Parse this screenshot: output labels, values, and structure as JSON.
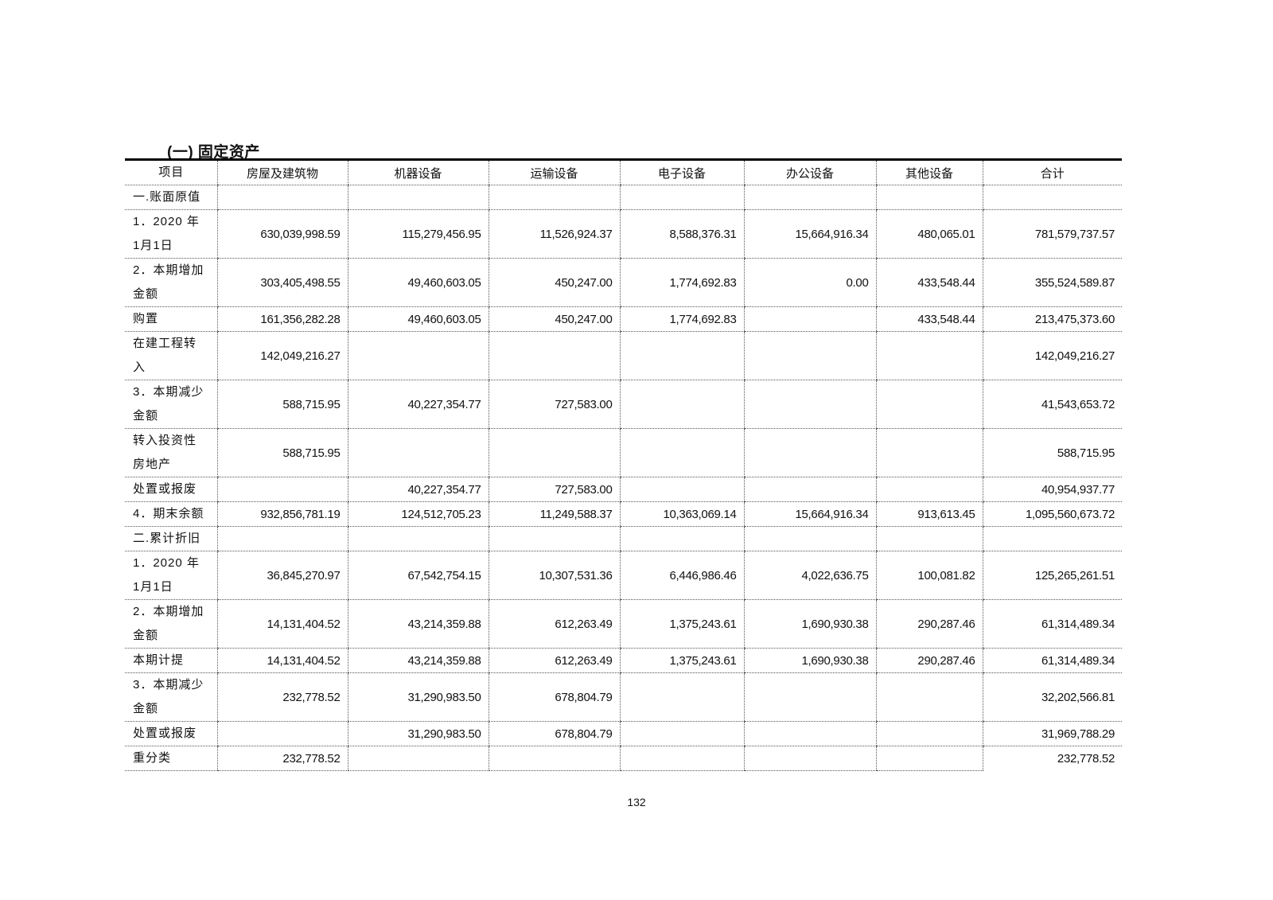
{
  "section_title": "(一) 固定资产",
  "columns": [
    "项目",
    "房屋及建筑物",
    "机器设备",
    "运输设备",
    "电子设备",
    "办公设备",
    "其他设备",
    "合计"
  ],
  "rows": [
    {
      "label": "一.账面原值",
      "values": [
        "",
        "",
        "",
        "",
        "",
        "",
        ""
      ]
    },
    {
      "label": "1．2020 年\n1月1日",
      "values": [
        "630,039,998.59",
        "115,279,456.95",
        "11,526,924.37",
        "8,588,376.31",
        "15,664,916.34",
        "480,065.01",
        "781,579,737.57"
      ]
    },
    {
      "label": "2．本期增加\n金额",
      "values": [
        "303,405,498.55",
        "49,460,603.05",
        "450,247.00",
        "1,774,692.83",
        "0.00",
        "433,548.44",
        "355,524,589.87"
      ]
    },
    {
      "label": "购置",
      "values": [
        "161,356,282.28",
        "49,460,603.05",
        "450,247.00",
        "1,774,692.83",
        "",
        "433,548.44",
        "213,475,373.60"
      ]
    },
    {
      "label": "在建工程转\n入",
      "values": [
        "142,049,216.27",
        "",
        "",
        "",
        "",
        "",
        "142,049,216.27"
      ]
    },
    {
      "label": "3．本期减少\n金额",
      "values": [
        "588,715.95",
        "40,227,354.77",
        "727,583.00",
        "",
        "",
        "",
        "41,543,653.72"
      ]
    },
    {
      "label": "转入投资性\n房地产",
      "values": [
        "588,715.95",
        "",
        "",
        "",
        "",
        "",
        "588,715.95"
      ]
    },
    {
      "label": "处置或报废",
      "values": [
        "",
        "40,227,354.77",
        "727,583.00",
        "",
        "",
        "",
        "40,954,937.77"
      ]
    },
    {
      "label": "4．期末余额",
      "values": [
        "932,856,781.19",
        "124,512,705.23",
        "11,249,588.37",
        "10,363,069.14",
        "15,664,916.34",
        "913,613.45",
        "1,095,560,673.72"
      ]
    },
    {
      "label": "二.累计折旧",
      "values": [
        "",
        "",
        "",
        "",
        "",
        "",
        ""
      ]
    },
    {
      "label": "1．2020 年\n1月1日",
      "values": [
        "36,845,270.97",
        "67,542,754.15",
        "10,307,531.36",
        "6,446,986.46",
        "4,022,636.75",
        "100,081.82",
        "125,265,261.51"
      ]
    },
    {
      "label": "2．本期增加\n金额",
      "values": [
        "14,131,404.52",
        "43,214,359.88",
        "612,263.49",
        "1,375,243.61",
        "1,690,930.38",
        "290,287.46",
        "61,314,489.34"
      ]
    },
    {
      "label": "本期计提",
      "values": [
        "14,131,404.52",
        "43,214,359.88",
        "612,263.49",
        "1,375,243.61",
        "1,690,930.38",
        "290,287.46",
        "61,314,489.34"
      ]
    },
    {
      "label": "3．本期减少\n金额",
      "values": [
        "232,778.52",
        "31,290,983.50",
        "678,804.79",
        "",
        "",
        "",
        "32,202,566.81"
      ]
    },
    {
      "label": "处置或报废",
      "values": [
        "",
        "31,290,983.50",
        "678,804.79",
        "",
        "",
        "",
        "31,969,788.29"
      ]
    },
    {
      "label": "重分类",
      "values": [
        "232,778.52",
        "",
        "",
        "",
        "",
        "",
        "232,778.52"
      ]
    }
  ],
  "page_number": "132"
}
